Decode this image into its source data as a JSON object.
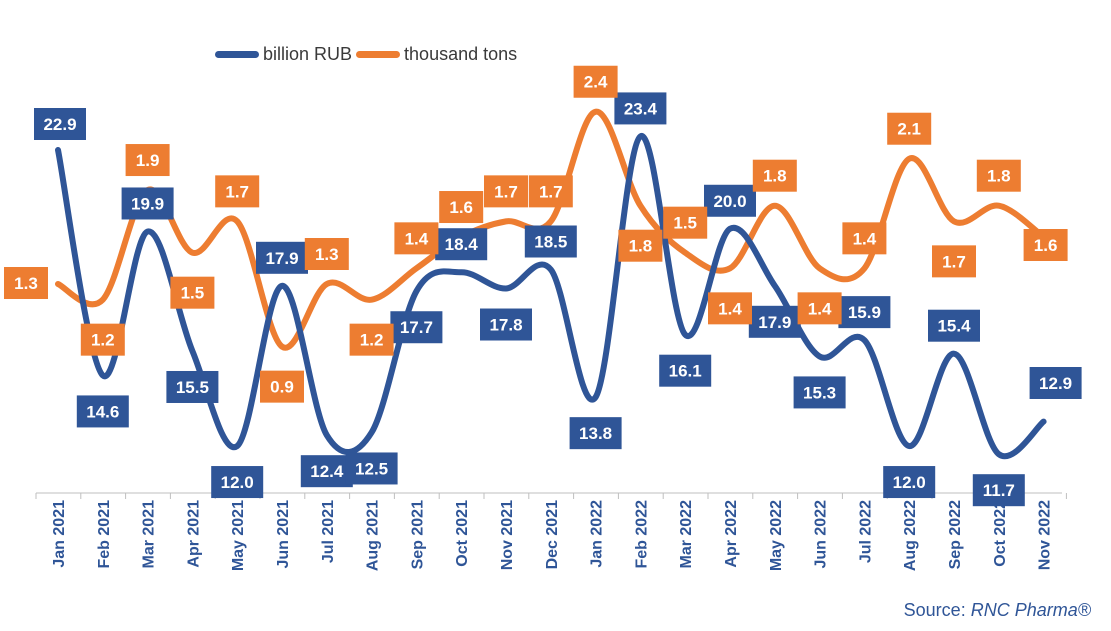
{
  "chart_data": {
    "type": "line",
    "categories": [
      "Jan 2021",
      "Feb 2021",
      "Mar 2021",
      "Apr 2021",
      "May 2021",
      "Jun 2021",
      "Jul 2021",
      "Aug 2021",
      "Sep 2021",
      "Oct 2021",
      "Nov 2021",
      "Dec 2021",
      "Jan 2022",
      "Feb 2022",
      "Mar 2022",
      "Apr 2022",
      "May 2022",
      "Jun 2022",
      "Jul 2022",
      "Aug 2022",
      "Sep 2022",
      "Oct 2022",
      "Nov 2022"
    ],
    "series": [
      {
        "name": "billion RUB",
        "color": "#2f5597",
        "values": [
          22.9,
          14.6,
          19.9,
          15.5,
          12.0,
          17.9,
          12.4,
          12.5,
          17.7,
          18.4,
          17.8,
          18.5,
          13.8,
          23.4,
          16.1,
          20.0,
          17.9,
          15.3,
          15.9,
          12.0,
          15.4,
          11.7,
          12.9
        ],
        "labels": [
          "22.9",
          "14.6",
          "19.9",
          "15.5",
          "12.0",
          "17.9",
          "12.4",
          "12.5",
          "17.7",
          "18.4",
          "17.8",
          "18.5",
          "13.8",
          "23.4",
          "16.1",
          "20.0",
          "17.9",
          "15.3",
          "15.9",
          "12.0",
          "15.4",
          "11.7",
          "12.9"
        ]
      },
      {
        "name": "thousand tons",
        "color": "#ed7d31",
        "values": [
          1.3,
          1.2,
          1.9,
          1.5,
          1.7,
          0.9,
          1.3,
          1.2,
          1.4,
          1.6,
          1.7,
          1.7,
          2.4,
          1.8,
          1.5,
          1.4,
          1.8,
          1.4,
          1.4,
          2.1,
          1.7,
          1.8,
          1.6
        ],
        "labels": [
          "1.3",
          "1.2",
          "1.9",
          "1.5",
          "1.7",
          "0.9",
          "1.3",
          "1.2",
          "1.4",
          "1.6",
          "1.7",
          "1.7",
          "2.4",
          "1.8",
          "1.5",
          "1.4",
          "1.8",
          "1.4",
          "1.4",
          "2.1",
          "1.7",
          "1.8",
          "1.6"
        ]
      }
    ],
    "axes": {
      "left_range": [
        10,
        25
      ],
      "right_range": [
        0.5,
        2.5
      ]
    },
    "grid": false,
    "legend_position": "top-left"
  },
  "legend": {
    "item1": "billion RUB",
    "item2": "thousand tons"
  },
  "source": {
    "prefix": "Source: ",
    "name": "RNC Pharma®"
  }
}
